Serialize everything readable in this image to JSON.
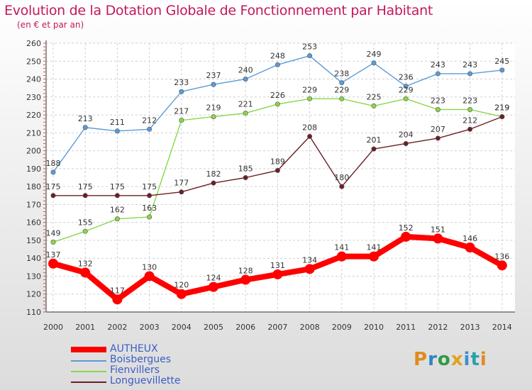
{
  "header": {
    "title": "Evolution de la Dotation Globale de Fonctionnement par Habitant",
    "subtitle": "(en € et par an)"
  },
  "logo_text": "Proxiti",
  "colors": {
    "title": "#c2185b",
    "legend_text": "#3a5ec4",
    "autheux": "#ff0000",
    "boisbergues": "#5b9bd5",
    "fienvillers": "#8bd64a",
    "longuevillette": "#6b1f24"
  },
  "chart_data": {
    "type": "line",
    "title": "Evolution de la Dotation Globale de Fonctionnement par Habitant",
    "subtitle": "(en € et par an)",
    "xlabel": "",
    "ylabel": "",
    "ylim": [
      110,
      260
    ],
    "yticks": [
      110,
      120,
      130,
      140,
      150,
      160,
      170,
      180,
      190,
      200,
      210,
      220,
      230,
      240,
      250,
      260
    ],
    "grid": true,
    "legend_position": "bottom-left",
    "categories": [
      "2000",
      "2001",
      "2002",
      "2003",
      "2004",
      "2005",
      "2006",
      "2007",
      "2008",
      "2009",
      "2010",
      "2011",
      "2012",
      "2013",
      "2014"
    ],
    "series": [
      {
        "name": "AUTHEUX",
        "color": "#ff0000",
        "values": [
          137,
          132,
          117,
          130,
          120,
          124,
          128,
          131,
          134,
          141,
          141,
          152,
          151,
          146,
          136
        ]
      },
      {
        "name": "Boisbergues",
        "color": "#5b9bd5",
        "values": [
          188,
          213,
          211,
          212,
          233,
          237,
          240,
          248,
          253,
          238,
          249,
          236,
          243,
          243,
          245
        ]
      },
      {
        "name": "Fienvillers",
        "color": "#8bd64a",
        "values": [
          149,
          155,
          162,
          163,
          217,
          219,
          221,
          226,
          229,
          229,
          225,
          229,
          223,
          223,
          219
        ]
      },
      {
        "name": "Longuevillette",
        "color": "#6b1f24",
        "values": [
          175,
          175,
          175,
          175,
          177,
          182,
          185,
          189,
          208,
          180,
          201,
          204,
          207,
          212,
          219
        ]
      }
    ]
  }
}
